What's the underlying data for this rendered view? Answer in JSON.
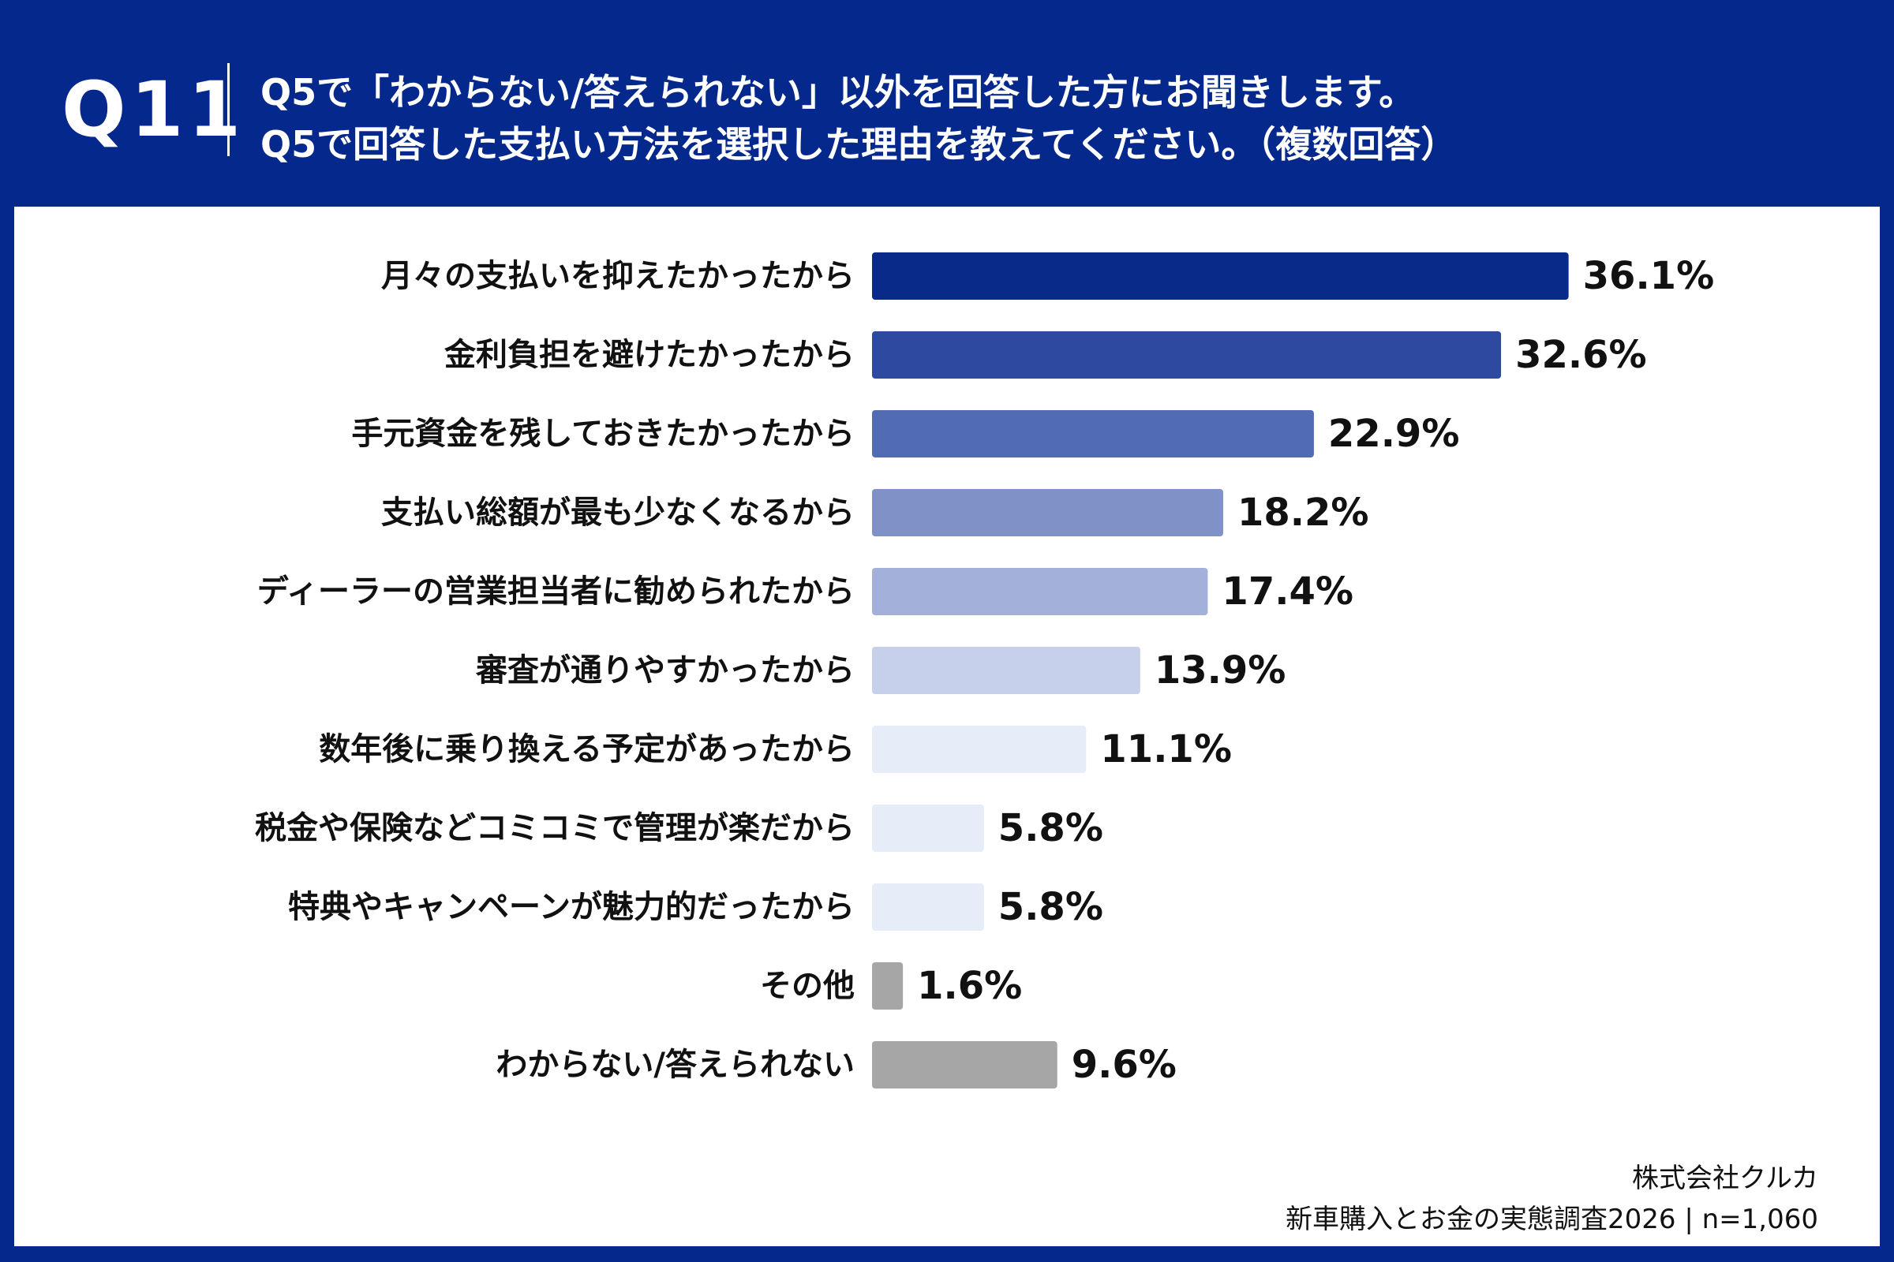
{
  "header": {
    "question_number": "Q11",
    "question_line1": "Q5で「わからない/答えられない」以外を回答した方にお聞きします。",
    "question_line2": "Q5で回答した支払い方法を選択した理由を教えてください。（複数回答）"
  },
  "colors": {
    "header_bg": "#04288c",
    "panel_bg": "#ffffff"
  },
  "chart_data": {
    "type": "bar",
    "orientation": "horizontal",
    "categories": [
      "月々の支払いを抑えたかったから",
      "金利負担を避けたかったから",
      "手元資金を残しておきたかったから",
      "支払い総額が最も少なくなるから",
      "ディーラーの営業担当者に勧められたから",
      "審査が通りやすかったから",
      "数年後に乗り換える予定があったから",
      "税金や保険などコミコミで管理が楽だから",
      "特典やキャンペーンが魅力的だったから",
      "その他",
      "わからない/答えられない"
    ],
    "values": [
      36.1,
      32.6,
      22.9,
      18.2,
      17.4,
      13.9,
      11.1,
      5.8,
      5.8,
      1.6,
      9.6
    ],
    "value_labels": [
      "36.1%",
      "32.6%",
      "22.9%",
      "18.2%",
      "17.4%",
      "13.9%",
      "11.1%",
      "5.8%",
      "5.8%",
      "1.6%",
      "9.6%"
    ],
    "bar_colors": [
      "#0a2a8a",
      "#2e4aa0",
      "#526cb4",
      "#7f91c6",
      "#a3b0da",
      "#c7d0ea",
      "#e6edf8",
      "#e6edf8",
      "#e6edf8",
      "#a6a6a6",
      "#a6a6a6"
    ],
    "unit": "%",
    "xlim": [
      0,
      40
    ],
    "grid": false,
    "legend": "none"
  },
  "footer": {
    "company": "株式会社クルカ",
    "survey": "新車購入とお金の実態調査2026 | n=1,060"
  }
}
